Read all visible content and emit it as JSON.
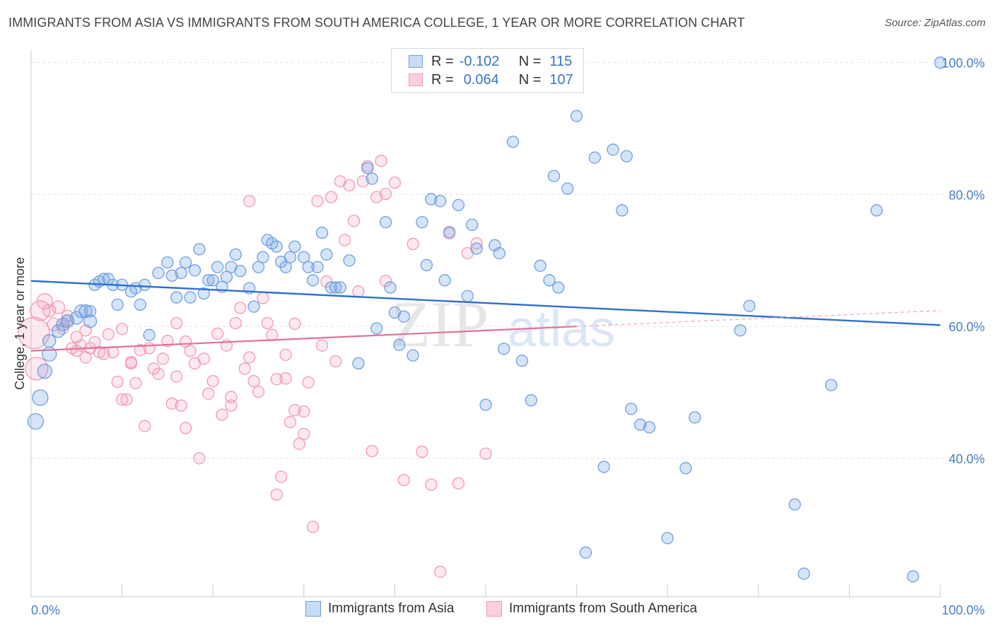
{
  "title": "IMMIGRANTS FROM ASIA VS IMMIGRANTS FROM SOUTH AMERICA COLLEGE, 1 YEAR OR MORE CORRELATION CHART",
  "source": "Source: ZipAtlas.com",
  "watermark": {
    "zip": "ZIP",
    "atlas": "atlas"
  },
  "legend": {
    "rows": [
      {
        "r_label": "R =",
        "r_value": "-0.102",
        "n_label": "N =",
        "n_value": "115",
        "color": "#6f9fe0"
      },
      {
        "r_label": "R =",
        "r_value": "0.064",
        "n_label": "N =",
        "n_value": "107",
        "color": "#f29ab5"
      }
    ]
  },
  "bottom_legend": [
    {
      "label": "Immigrants from Asia",
      "color": "#6f9fe0"
    },
    {
      "label": "Immigrants from South America",
      "color": "#f29ab5"
    }
  ],
  "chart_data": {
    "type": "scatter",
    "title": "IMMIGRANTS FROM ASIA VS IMMIGRANTS FROM SOUTH AMERICA COLLEGE, 1 YEAR OR MORE CORRELATION CHART",
    "xlabel": "",
    "ylabel": "College, 1 year or more",
    "xlim": [
      0,
      100
    ],
    "ylim": [
      19,
      102
    ],
    "x_tick_labels": [
      "0.0%",
      "100.0%"
    ],
    "y_tick_labels": [
      "40.0%",
      "60.0%",
      "80.0%",
      "100.0%"
    ],
    "y_ticks": [
      40,
      60,
      80,
      100
    ],
    "grid": true,
    "legend_position": "top-center",
    "series": [
      {
        "name": "Immigrants from Asia",
        "color": "#6f9fe0",
        "trend": {
          "x0": 0,
          "y0": 66.9,
          "x1": 100,
          "y1": 60.2
        },
        "points": [
          [
            0.5,
            45.6,
            11
          ],
          [
            1,
            49.2,
            11
          ],
          [
            1.5,
            53.2,
            10
          ],
          [
            2,
            55.8,
            10
          ],
          [
            2,
            57.8,
            9
          ],
          [
            3,
            59.3,
            9
          ],
          [
            3.5,
            60.3,
            9
          ],
          [
            4,
            60.8,
            9
          ],
          [
            5,
            61.3,
            9
          ],
          [
            5.5,
            62.3,
            9
          ],
          [
            6,
            62.3,
            9
          ],
          [
            6.5,
            60.8,
            9
          ],
          [
            6.5,
            62.3,
            8
          ],
          [
            7,
            66.3,
            8
          ],
          [
            7.5,
            66.8,
            8
          ],
          [
            8,
            67.2,
            8
          ],
          [
            8.5,
            67.2,
            8
          ],
          [
            9,
            66.3,
            8
          ],
          [
            9.5,
            63.3,
            8
          ],
          [
            10,
            66.3,
            8
          ],
          [
            11,
            65.3,
            8
          ],
          [
            11.5,
            65.8,
            8
          ],
          [
            12,
            63.3,
            8
          ],
          [
            12.5,
            66.3,
            8
          ],
          [
            13,
            58.7,
            8
          ],
          [
            14,
            68.1,
            8
          ],
          [
            15,
            69.7,
            8
          ],
          [
            15.5,
            67.7,
            8
          ],
          [
            16,
            64.4,
            8
          ],
          [
            16.5,
            68.1,
            8
          ],
          [
            17,
            69.7,
            8
          ],
          [
            17.5,
            64.4,
            8
          ],
          [
            18,
            68.5,
            8
          ],
          [
            18.5,
            71.7,
            8
          ],
          [
            19,
            65.0,
            8
          ],
          [
            19.5,
            67.0,
            8
          ],
          [
            20,
            67.0,
            8
          ],
          [
            20.5,
            69.0,
            8
          ],
          [
            21,
            66.0,
            8
          ],
          [
            21.5,
            67.5,
            8
          ],
          [
            22,
            69.0,
            8
          ],
          [
            22.5,
            70.9,
            8
          ],
          [
            23,
            68.4,
            8
          ],
          [
            24,
            65.8,
            8
          ],
          [
            24.5,
            63.0,
            8
          ],
          [
            25,
            69.0,
            8
          ],
          [
            25.5,
            70.5,
            8
          ],
          [
            26,
            73.1,
            8
          ],
          [
            26.5,
            72.6,
            8
          ],
          [
            27,
            72.1,
            8
          ],
          [
            27.5,
            69.8,
            8
          ],
          [
            28,
            69.0,
            8
          ],
          [
            28.5,
            70.5,
            8
          ],
          [
            29,
            72.1,
            8
          ],
          [
            30,
            70.5,
            8
          ],
          [
            30.5,
            69.0,
            8
          ],
          [
            31,
            67.0,
            8
          ],
          [
            31.5,
            69.0,
            8
          ],
          [
            32,
            74.2,
            8
          ],
          [
            32.5,
            70.9,
            8
          ],
          [
            33,
            65.9,
            8
          ],
          [
            33.5,
            65.9,
            8
          ],
          [
            34,
            65.9,
            8
          ],
          [
            35,
            70.0,
            8
          ],
          [
            36,
            54.4,
            8
          ],
          [
            37,
            84.0,
            8
          ],
          [
            37.5,
            82.4,
            8
          ],
          [
            38,
            59.7,
            8
          ],
          [
            39,
            75.8,
            8
          ],
          [
            39.5,
            65.9,
            8
          ],
          [
            40,
            62.1,
            8
          ],
          [
            40.5,
            57.2,
            8
          ],
          [
            41,
            61.5,
            8
          ],
          [
            42,
            55.6,
            8
          ],
          [
            43,
            75.8,
            8
          ],
          [
            43.5,
            69.3,
            8
          ],
          [
            44,
            79.3,
            8
          ],
          [
            45,
            79.0,
            8
          ],
          [
            45.5,
            67.0,
            8
          ],
          [
            46,
            74.3,
            8
          ],
          [
            47,
            78.4,
            8
          ],
          [
            48,
            64.6,
            8
          ],
          [
            48.5,
            75.4,
            8
          ],
          [
            49,
            71.8,
            8
          ],
          [
            50,
            48.1,
            8
          ],
          [
            51,
            72.3,
            8
          ],
          [
            51.5,
            71.1,
            8
          ],
          [
            52,
            56.6,
            8
          ],
          [
            53,
            88.0,
            8
          ],
          [
            54,
            54.8,
            8
          ],
          [
            55,
            48.8,
            8
          ],
          [
            56,
            69.2,
            8
          ],
          [
            57,
            67.0,
            8
          ],
          [
            57.5,
            82.8,
            8
          ],
          [
            58,
            65.9,
            8
          ],
          [
            59,
            80.9,
            8
          ],
          [
            60,
            91.9,
            8
          ],
          [
            62,
            85.6,
            8
          ],
          [
            63,
            38.7,
            8
          ],
          [
            64,
            86.8,
            8
          ],
          [
            65,
            77.6,
            8
          ],
          [
            65.5,
            85.8,
            8
          ],
          [
            66,
            47.5,
            8
          ],
          [
            67,
            45.1,
            8
          ],
          [
            68,
            44.7,
            8
          ],
          [
            70,
            27.9,
            8
          ],
          [
            72,
            38.5,
            8
          ],
          [
            73,
            46.2,
            8
          ],
          [
            78,
            59.4,
            8
          ],
          [
            79,
            63.1,
            8
          ],
          [
            84,
            33.0,
            8
          ],
          [
            85,
            22.5,
            8
          ],
          [
            88,
            51.1,
            8
          ],
          [
            93,
            77.6,
            8
          ],
          [
            97,
            22.1,
            8
          ],
          [
            61,
            25.7,
            8
          ],
          [
            100,
            100.0,
            8
          ]
        ]
      },
      {
        "name": "Immigrants from South America",
        "color": "#f29ab5",
        "trend": {
          "x0": 0,
          "y0": 56.3,
          "x1": 60,
          "y1": 60.0,
          "dash_x1": 100,
          "dash_y1": 62.4
        },
        "points": [
          [
            0.3,
            59.0,
            22
          ],
          [
            0.6,
            53.6,
            16
          ],
          [
            1,
            62.4,
            14
          ],
          [
            1.5,
            63.8,
            11
          ],
          [
            2,
            62.4,
            9
          ],
          [
            2.5,
            60.3,
            9
          ],
          [
            3,
            62.9,
            9
          ],
          [
            3.5,
            59.7,
            8
          ],
          [
            4,
            61.6,
            8
          ],
          [
            4.5,
            56.7,
            8
          ],
          [
            5,
            58.4,
            8
          ],
          [
            5.5,
            57.1,
            8
          ],
          [
            6,
            55.3,
            8
          ],
          [
            6.5,
            56.7,
            8
          ],
          [
            7,
            57.6,
            8
          ],
          [
            7.5,
            56.1,
            8
          ],
          [
            8,
            55.8,
            8
          ],
          [
            8.5,
            58.8,
            8
          ],
          [
            9,
            56.1,
            8
          ],
          [
            9.5,
            51.6,
            8
          ],
          [
            10,
            59.6,
            8
          ],
          [
            10.5,
            48.9,
            8
          ],
          [
            11,
            54.4,
            8
          ],
          [
            11.5,
            51.4,
            8
          ],
          [
            12,
            56.4,
            8
          ],
          [
            12.5,
            44.9,
            8
          ],
          [
            13,
            56.7,
            8
          ],
          [
            13.5,
            53.6,
            8
          ],
          [
            14,
            52.8,
            8
          ],
          [
            14.5,
            55.1,
            8
          ],
          [
            15,
            57.8,
            8
          ],
          [
            15.5,
            48.3,
            8
          ],
          [
            16,
            60.5,
            8
          ],
          [
            16.5,
            48.0,
            8
          ],
          [
            17,
            44.6,
            8
          ],
          [
            17.5,
            56.3,
            8
          ],
          [
            18,
            54.4,
            8
          ],
          [
            18.5,
            40.0,
            8
          ],
          [
            19,
            55.1,
            8
          ],
          [
            19.5,
            49.8,
            8
          ],
          [
            20,
            51.7,
            8
          ],
          [
            20.5,
            58.9,
            8
          ],
          [
            21,
            46.6,
            8
          ],
          [
            21.5,
            57.1,
            8
          ],
          [
            22,
            48.0,
            8
          ],
          [
            22.5,
            60.5,
            8
          ],
          [
            23,
            62.8,
            8
          ],
          [
            23.5,
            53.6,
            8
          ],
          [
            24,
            55.3,
            8
          ],
          [
            24.5,
            51.7,
            8
          ],
          [
            25,
            50.1,
            8
          ],
          [
            25.5,
            64.3,
            8
          ],
          [
            26,
            60.5,
            8
          ],
          [
            26.5,
            58.7,
            8
          ],
          [
            27,
            34.5,
            8
          ],
          [
            27.5,
            37.2,
            8
          ],
          [
            28,
            52.1,
            8
          ],
          [
            28.5,
            45.5,
            8
          ],
          [
            29,
            47.3,
            8
          ],
          [
            29.5,
            42.2,
            8
          ],
          [
            30,
            43.7,
            8
          ],
          [
            30.5,
            51.5,
            8
          ],
          [
            31,
            29.6,
            8
          ],
          [
            31.5,
            79.0,
            8
          ],
          [
            32,
            57.1,
            8
          ],
          [
            32.5,
            66.8,
            8
          ],
          [
            33,
            79.6,
            8
          ],
          [
            33.5,
            54.7,
            8
          ],
          [
            34,
            82.0,
            8
          ],
          [
            34.5,
            73.1,
            8
          ],
          [
            35,
            81.4,
            8
          ],
          [
            35.5,
            76.0,
            8
          ],
          [
            36,
            65.3,
            8
          ],
          [
            36.5,
            82.0,
            8
          ],
          [
            37,
            84.3,
            8
          ],
          [
            37.5,
            41.1,
            8
          ],
          [
            38,
            79.6,
            8
          ],
          [
            38.5,
            85.1,
            8
          ],
          [
            39,
            80.1,
            8
          ],
          [
            40,
            81.8,
            8
          ],
          [
            41,
            36.7,
            8
          ],
          [
            42,
            72.5,
            8
          ],
          [
            43,
            41.0,
            8
          ],
          [
            44,
            36.0,
            8
          ],
          [
            45,
            22.8,
            8
          ],
          [
            46,
            74.1,
            8
          ],
          [
            47,
            36.2,
            8
          ],
          [
            48,
            71.1,
            8
          ],
          [
            49,
            72.6,
            8
          ],
          [
            50,
            40.7,
            8
          ],
          [
            24,
            79.0,
            8
          ],
          [
            30,
            47.1,
            8
          ],
          [
            29,
            60.4,
            8
          ],
          [
            28,
            55.7,
            8
          ],
          [
            27,
            52.0,
            8
          ],
          [
            22,
            49.3,
            8
          ],
          [
            17,
            57.7,
            8
          ],
          [
            16,
            52.4,
            8
          ],
          [
            11,
            54.6,
            8
          ],
          [
            10,
            48.9,
            8
          ],
          [
            5,
            56.3,
            8
          ],
          [
            4,
            60.9,
            8
          ],
          [
            6,
            59.4,
            8
          ],
          [
            39,
            66.9,
            8
          ]
        ]
      }
    ]
  }
}
